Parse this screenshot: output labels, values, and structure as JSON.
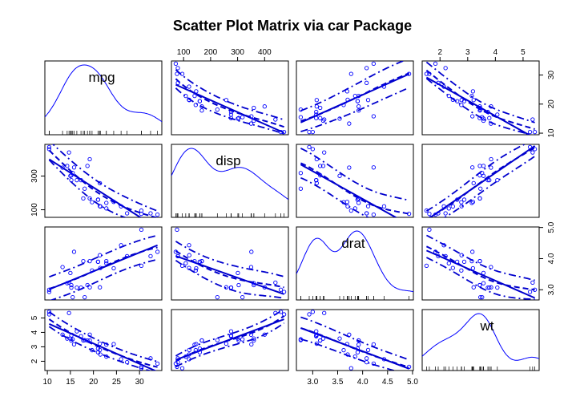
{
  "chart_data": {
    "type": "scatter",
    "title": "Scatter Plot Matrix via car Package",
    "variables": [
      "mpg",
      "disp",
      "drat",
      "wt"
    ],
    "ranges": {
      "mpg": [
        10.4,
        33.9
      ],
      "disp": [
        71.1,
        472
      ],
      "drat": [
        2.76,
        4.93
      ],
      "wt": [
        1.513,
        5.424
      ]
    },
    "ticks": {
      "mpg": [
        10,
        15,
        20,
        25,
        30
      ],
      "disp": [
        100,
        200,
        300,
        400
      ],
      "drat": [
        3.0,
        3.5,
        4.0,
        4.5,
        5.0
      ],
      "wt": [
        2,
        3,
        4,
        5
      ]
    },
    "tick_labels": {
      "mpg_bottom": [
        "10",
        "15",
        "20",
        "25",
        "30"
      ],
      "disp_top": [
        "100",
        "200",
        "300",
        "400"
      ],
      "drat_bottom": [
        "3.0",
        "3.5",
        "4.0",
        "4.5",
        "5.0"
      ],
      "wt_top": [
        "2",
        "3",
        "4",
        "5"
      ],
      "mpg_right": [
        "10",
        "20",
        "30"
      ],
      "disp_left": [
        "100",
        "300"
      ],
      "drat_right": [
        "3.0",
        "4.0",
        "5.0"
      ],
      "wt_left": [
        "2",
        "3",
        "4",
        "5"
      ]
    },
    "records": [
      [
        21.0,
        160.0,
        3.9,
        2.62
      ],
      [
        21.0,
        160.0,
        3.9,
        2.875
      ],
      [
        22.8,
        108.0,
        3.85,
        2.32
      ],
      [
        21.4,
        258.0,
        3.08,
        3.215
      ],
      [
        18.7,
        360.0,
        3.15,
        3.44
      ],
      [
        18.1,
        225.0,
        2.76,
        3.46
      ],
      [
        14.3,
        360.0,
        3.21,
        3.57
      ],
      [
        24.4,
        146.7,
        3.69,
        3.19
      ],
      [
        22.8,
        140.8,
        3.92,
        3.15
      ],
      [
        19.2,
        167.6,
        3.92,
        3.44
      ],
      [
        17.8,
        167.6,
        3.92,
        3.44
      ],
      [
        16.4,
        275.8,
        3.07,
        4.07
      ],
      [
        17.3,
        275.8,
        3.07,
        3.73
      ],
      [
        15.2,
        275.8,
        3.07,
        3.78
      ],
      [
        10.4,
        472.0,
        2.93,
        5.25
      ],
      [
        10.4,
        460.0,
        3.0,
        5.424
      ],
      [
        14.7,
        440.0,
        3.23,
        5.345
      ],
      [
        32.4,
        78.7,
        4.08,
        2.2
      ],
      [
        30.4,
        75.7,
        4.93,
        1.615
      ],
      [
        33.9,
        71.1,
        4.22,
        1.835
      ],
      [
        21.5,
        120.1,
        3.7,
        2.465
      ],
      [
        15.5,
        318.0,
        2.76,
        3.52
      ],
      [
        15.2,
        304.0,
        3.15,
        3.435
      ],
      [
        13.3,
        350.0,
        3.73,
        3.84
      ],
      [
        19.2,
        400.0,
        3.08,
        3.845
      ],
      [
        27.3,
        79.0,
        4.08,
        1.935
      ],
      [
        26.0,
        120.3,
        4.43,
        2.14
      ],
      [
        30.4,
        95.1,
        3.77,
        1.513
      ],
      [
        15.8,
        351.0,
        4.22,
        3.17
      ],
      [
        19.7,
        145.0,
        3.62,
        2.77
      ],
      [
        15.0,
        301.0,
        3.54,
        3.57
      ],
      [
        21.4,
        121.0,
        4.11,
        2.78
      ]
    ],
    "colors": {
      "points": "#0000ff",
      "fit_line": "#0000cd",
      "density": "#0000ff",
      "axes": "#000000"
    },
    "diagonal": "density",
    "off_diagonal": [
      "points",
      "regression-line",
      "smoother",
      "smoother-spread"
    ]
  }
}
